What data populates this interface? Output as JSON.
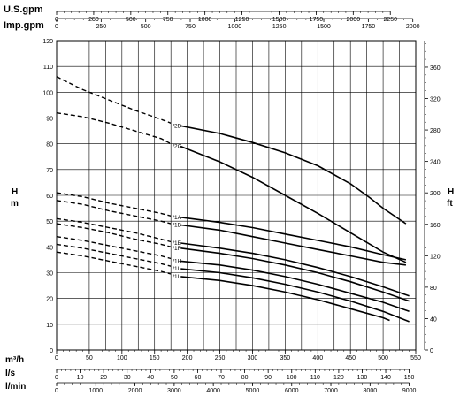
{
  "chart_data": {
    "type": "line",
    "top_axes": [
      {
        "label": "U.S.gpm",
        "ticks": [
          0,
          250,
          500,
          750,
          1000,
          1250,
          1500,
          1750,
          2000,
          2250
        ]
      },
      {
        "label": "Imp.gpm",
        "ticks": [
          0,
          250,
          500,
          750,
          1000,
          1250,
          1500,
          1750,
          2000
        ]
      }
    ],
    "bottom_axes": [
      {
        "label": "m³/h",
        "ticks": [
          0,
          50,
          100,
          150,
          200,
          250,
          300,
          350,
          400,
          450,
          500,
          550
        ]
      },
      {
        "label": "l/s",
        "ticks": [
          0,
          10,
          20,
          30,
          40,
          50,
          60,
          70,
          80,
          90,
          100,
          110,
          120,
          130,
          140,
          150
        ]
      },
      {
        "label": "l/min",
        "ticks": [
          0,
          1000,
          2000,
          3000,
          4000,
          5000,
          6000,
          7000,
          8000,
          9000
        ]
      }
    ],
    "ylabel_left": "H\nm",
    "ylabel_right": "H\nft",
    "ylim": [
      0,
      120
    ],
    "xlim": [
      0,
      550
    ],
    "y_ticks": [
      0,
      10,
      20,
      30,
      40,
      50,
      60,
      70,
      80,
      90,
      100,
      110,
      120
    ],
    "y_right_ticks": [
      0,
      40,
      80,
      120,
      160,
      200,
      240,
      280,
      320,
      360
    ],
    "grid": true,
    "series": [
      {
        "name": "/2D",
        "dashed": {
          "x": [
            0,
            40,
            80,
            120,
            160,
            175
          ],
          "y": [
            106,
            101,
            97,
            93,
            89.5,
            88
          ]
        },
        "solid": {
          "x": [
            190,
            250,
            300,
            350,
            400,
            450,
            480,
            500,
            535
          ],
          "y": [
            87,
            84,
            80.5,
            76.5,
            71.5,
            64.5,
            59,
            55,
            49
          ]
        }
      },
      {
        "name": "/2G",
        "dashed": {
          "x": [
            0,
            40,
            80,
            120,
            160,
            175
          ],
          "y": [
            92,
            90.5,
            88,
            85,
            82,
            80
          ]
        },
        "solid": {
          "x": [
            190,
            250,
            300,
            350,
            400,
            450,
            500,
            535
          ],
          "y": [
            79,
            73,
            67,
            60,
            53,
            45.5,
            38,
            34
          ]
        }
      },
      {
        "name": "/1A",
        "dashed": {
          "x": [
            0,
            40,
            80,
            120,
            160,
            175
          ],
          "y": [
            61,
            59.5,
            57,
            55,
            53,
            52
          ]
        },
        "solid": {
          "x": [
            190,
            250,
            300,
            350,
            400,
            450,
            500,
            535
          ],
          "y": [
            51.5,
            49.5,
            47.5,
            45,
            42.5,
            40,
            37,
            35
          ]
        }
      },
      {
        "name": "/1B",
        "dashed": {
          "x": [
            0,
            40,
            80,
            120,
            160,
            175
          ],
          "y": [
            58,
            56.5,
            54,
            52,
            50,
            49
          ]
        },
        "solid": {
          "x": [
            190,
            250,
            300,
            350,
            400,
            450,
            500,
            535
          ],
          "y": [
            48.5,
            46.5,
            44,
            41.5,
            39,
            36.5,
            34,
            33
          ]
        }
      },
      {
        "name": "/1E",
        "dashed": {
          "x": [
            0,
            40,
            80,
            120,
            160,
            175
          ],
          "y": [
            51,
            49.5,
            47.5,
            45.5,
            43,
            42
          ]
        },
        "solid": {
          "x": [
            190,
            250,
            300,
            350,
            400,
            450,
            500,
            540
          ],
          "y": [
            41.5,
            39.5,
            37.5,
            35,
            32,
            28.5,
            24.5,
            21
          ]
        }
      },
      {
        "name": "/1F",
        "dashed": {
          "x": [
            0,
            40,
            80,
            120,
            160,
            175
          ],
          "y": [
            49,
            47.5,
            45.5,
            43,
            41,
            40
          ]
        },
        "solid": {
          "x": [
            190,
            250,
            300,
            350,
            400,
            450,
            500,
            540
          ],
          "y": [
            39.5,
            37.5,
            35.5,
            33,
            30,
            26.5,
            22.5,
            19
          ]
        }
      },
      {
        "name": "/1H",
        "dashed": {
          "x": [
            0,
            40,
            80,
            120,
            160,
            175
          ],
          "y": [
            44,
            42.5,
            40.5,
            38.5,
            36.5,
            35.5
          ]
        },
        "solid": {
          "x": [
            190,
            250,
            300,
            350,
            400,
            450,
            500,
            540
          ],
          "y": [
            34.5,
            33,
            31,
            28.5,
            25.5,
            22,
            18.5,
            15
          ]
        }
      },
      {
        "name": "/1I",
        "dashed": {
          "x": [
            0,
            40,
            80,
            120,
            160,
            175
          ],
          "y": [
            41,
            39.5,
            37.5,
            35.5,
            33.5,
            32.5
          ]
        },
        "solid": {
          "x": [
            190,
            250,
            300,
            350,
            400,
            450,
            500,
            540
          ],
          "y": [
            31.5,
            30,
            28,
            25.5,
            22.5,
            19,
            15,
            11
          ]
        }
      },
      {
        "name": "/1L",
        "dashed": {
          "x": [
            0,
            40,
            80,
            120,
            160,
            175
          ],
          "y": [
            38,
            36.5,
            34.5,
            32.5,
            30.5,
            29.5
          ]
        },
        "solid": {
          "x": [
            190,
            250,
            300,
            350,
            400,
            450,
            500,
            510
          ],
          "y": [
            28.5,
            27,
            25,
            22.5,
            19.5,
            16,
            12.5,
            11.5
          ]
        }
      }
    ]
  }
}
